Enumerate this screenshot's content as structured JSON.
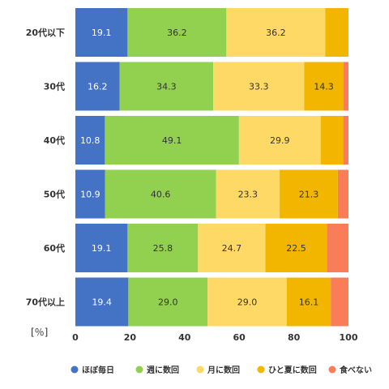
{
  "chart_data": {
    "type": "bar",
    "orientation": "horizontal",
    "stacked": true,
    "categories": [
      "20代以下",
      "30代",
      "40代",
      "50代",
      "60代",
      "70代以上"
    ],
    "series": [
      {
        "name": "ほぼ毎日",
        "color": "#4472c4",
        "values": [
          19.1,
          16.2,
          10.8,
          10.9,
          19.1,
          19.4
        ],
        "labels": [
          "19.1",
          "16.2",
          "10.8",
          "10.9",
          "19.1",
          "19.4"
        ]
      },
      {
        "name": "週に数回",
        "color": "#92d050",
        "values": [
          36.2,
          34.3,
          49.1,
          40.6,
          25.8,
          29.0
        ],
        "labels": [
          "36.2",
          "34.3",
          "49.1",
          "40.6",
          "25.8",
          "29.0"
        ]
      },
      {
        "name": "月に数回",
        "color": "#ffd966",
        "values": [
          36.2,
          33.3,
          29.9,
          23.3,
          24.7,
          29.0
        ],
        "labels": [
          "36.2",
          "33.3",
          "29.9",
          "23.3",
          "24.7",
          "29.0"
        ]
      },
      {
        "name": "ひと夏に数回",
        "color": "#f2b600",
        "values": [
          8.5,
          14.3,
          8.2,
          21.3,
          22.5,
          16.1
        ],
        "labels": [
          "",
          "14.3",
          "",
          "21.3",
          "22.5",
          "16.1"
        ]
      },
      {
        "name": "食べない",
        "color": "#fa7d5a",
        "values": [
          0.0,
          1.9,
          2.0,
          3.9,
          7.9,
          6.5
        ],
        "labels": [
          "",
          "",
          "",
          "",
          "",
          ""
        ]
      }
    ],
    "xlim": [
      0,
      100
    ],
    "xticks": [
      "0",
      "20",
      "40",
      "60",
      "80",
      "100"
    ],
    "unit_label": "[％]",
    "legend_position": "bottom",
    "grid": false
  }
}
